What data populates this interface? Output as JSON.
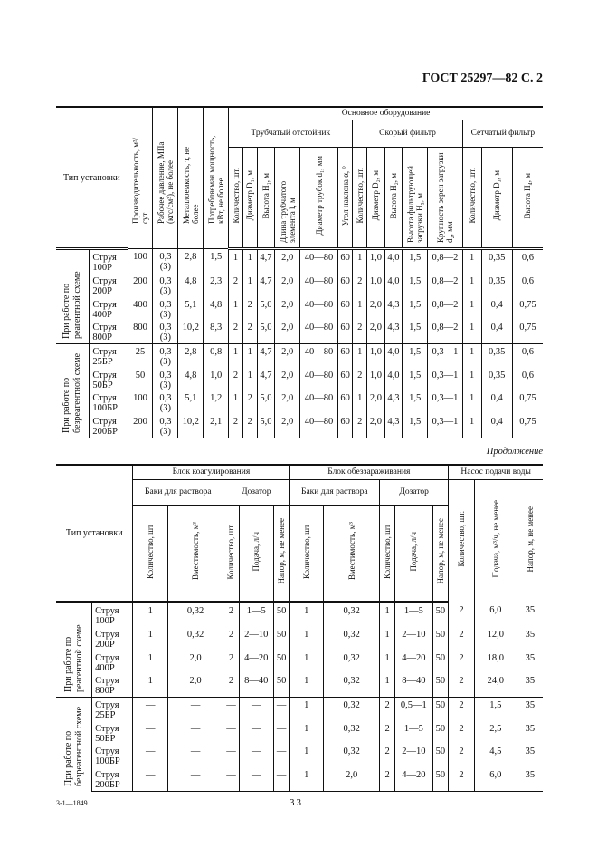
{
  "header": {
    "title": "ГОСТ 25297—82 С. 2"
  },
  "type_header": "Тип установки",
  "table1": {
    "main_headers": [
      "Производительность, м³/сут",
      "Рабочее давление, МПа (кгс/см²), не более",
      "Металлоемкость, т, не более",
      "Потребляемая мощность, кВт, не более"
    ],
    "group_header": "Основное оборудование",
    "subgroups": [
      {
        "label": "Трубчатый отстойник",
        "columns": [
          "Количество, шт.",
          "Диаметр D₁, м",
          "Высота H₁, м",
          "Длина трубчатого элемента l, м",
          "Диаметр трубок d₁, мм",
          "Угол наклона α, °"
        ]
      },
      {
        "label": "Скорый фильтр",
        "columns": [
          "Количество, шт.",
          "Диаметр D₂, м",
          "Высота H₂, м",
          "Высота фильтрующей загрузки H₃, м",
          "Крупность зерен загрузки d₂, мм"
        ]
      },
      {
        "label": "Сетчатый фильтр",
        "columns": [
          "Количество, шт.",
          "Диаметр D₃, м",
          "Высота H₄, м"
        ]
      }
    ],
    "groups": [
      {
        "label": "При работе по реагентной схеме",
        "rows": [
          {
            "type": "Струя\n100Р",
            "values": [
              "100",
              "0,3\n(3)",
              "2,8",
              "1,5",
              "1",
              "1",
              "4,7",
              "2,0",
              "40—80",
              "60",
              "1",
              "1,0",
              "4,0",
              "1,5",
              "0,8—2",
              "1",
              "0,35",
              "0,6"
            ]
          },
          {
            "type": "Струя\n200Р",
            "values": [
              "200",
              "0,3\n(3)",
              "4,8",
              "2,3",
              "2",
              "1",
              "4,7",
              "2,0",
              "40—80",
              "60",
              "2",
              "1,0",
              "4,0",
              "1,5",
              "0,8—2",
              "1",
              "0,35",
              "0,6"
            ]
          },
          {
            "type": "Струя\n400Р",
            "values": [
              "400",
              "0,3\n(3)",
              "5,1",
              "4,8",
              "1",
              "2",
              "5,0",
              "2,0",
              "40—80",
              "60",
              "1",
              "2,0",
              "4,3",
              "1,5",
              "0,8—2",
              "1",
              "0,4",
              "0,75"
            ]
          },
          {
            "type": "Струя\n800Р",
            "values": [
              "800",
              "0,3\n(3)",
              "10,2",
              "8,3",
              "2",
              "2",
              "5,0",
              "2,0",
              "40—80",
              "60",
              "2",
              "2,0",
              "4,3",
              "1,5",
              "0,8—2",
              "1",
              "0,4",
              "0,75"
            ]
          }
        ]
      },
      {
        "label": "При работе по безреагентной схеме",
        "rows": [
          {
            "type": "Струя\n25БР",
            "values": [
              "25",
              "0,3\n(3)",
              "2,8",
              "0,8",
              "1",
              "1",
              "4,7",
              "2,0",
              "40—80",
              "60",
              "1",
              "1,0",
              "4,0",
              "1,5",
              "0,3—1",
              "1",
              "0,35",
              "0,6"
            ]
          },
          {
            "type": "Струя\n50БР",
            "values": [
              "50",
              "0,3\n(3)",
              "4,8",
              "1,0",
              "2",
              "1",
              "4,7",
              "2,0",
              "40—80",
              "60",
              "2",
              "1,0",
              "4,0",
              "1,5",
              "0,3—1",
              "1",
              "0,35",
              "0,6"
            ]
          },
          {
            "type": "Струя\n100БР",
            "values": [
              "100",
              "0,3\n(3)",
              "5,1",
              "1,2",
              "1",
              "2",
              "5,0",
              "2,0",
              "40—80",
              "60",
              "1",
              "2,0",
              "4,3",
              "1,5",
              "0,3—1",
              "1",
              "0,4",
              "0,75"
            ]
          },
          {
            "type": "Струя\n200БР",
            "values": [
              "200",
              "0,3\n(3)",
              "10,2",
              "2,1",
              "2",
              "2",
              "5,0",
              "2,0",
              "40—80",
              "60",
              "2",
              "2,0",
              "4,3",
              "1,5",
              "0,3—1",
              "1",
              "0,4",
              "0,75"
            ]
          }
        ]
      }
    ]
  },
  "continuation": "Продолжение",
  "table2": {
    "blocks": [
      {
        "label": "Блок коагулирования",
        "subs": [
          {
            "label": "Баки для раствора",
            "columns": [
              "Количество, шт",
              "Вместимость, м³"
            ]
          },
          {
            "label": "Дозатор",
            "columns": [
              "Количество, шт.",
              "Подача, л/ч",
              "Напор, м, не менее"
            ]
          }
        ]
      },
      {
        "label": "Блок обеззараживания",
        "subs": [
          {
            "label": "Баки для раствора",
            "columns": [
              "Количество, шт",
              "Вместимость, м³"
            ]
          },
          {
            "label": "Дозатор",
            "columns": [
              "Количество, шт",
              "Подача, л/ч",
              "Напор, м, не менее"
            ]
          }
        ]
      }
    ],
    "pump": {
      "label": "Насос подачи воды",
      "columns": [
        "Количество, шт.",
        "Подача, м³/ч, не менее",
        "Напор, м, не менее"
      ]
    },
    "groups": [
      {
        "label": "При работе по реагентной схеме",
        "rows": [
          {
            "type": "Струя\n100Р",
            "values": [
              "1",
              "0,32",
              "2",
              "1—5",
              "50",
              "1",
              "0,32",
              "1",
              "1—5",
              "50",
              "2",
              "6,0",
              "35"
            ]
          },
          {
            "type": "Струя\n200Р",
            "values": [
              "1",
              "0,32",
              "2",
              "2—10",
              "50",
              "1",
              "0,32",
              "1",
              "2—10",
              "50",
              "2",
              "12,0",
              "35"
            ]
          },
          {
            "type": "Струя\n400Р",
            "values": [
              "1",
              "2,0",
              "2",
              "4—20",
              "50",
              "1",
              "0,32",
              "1",
              "4—20",
              "50",
              "2",
              "18,0",
              "35"
            ]
          },
          {
            "type": "Струя\n800Р",
            "values": [
              "1",
              "2,0",
              "2",
              "8—40",
              "50",
              "1",
              "0,32",
              "1",
              "8—40",
              "50",
              "2",
              "24,0",
              "35"
            ]
          }
        ]
      },
      {
        "label": "При работе по безреагентной схеме",
        "rows": [
          {
            "type": "Струя\n25БР",
            "values": [
              "—",
              "—",
              "—",
              "—",
              "—",
              "1",
              "0,32",
              "2",
              "0,5—1",
              "50",
              "2",
              "1,5",
              "35"
            ]
          },
          {
            "type": "Струя\n50БР",
            "values": [
              "—",
              "—",
              "—",
              "—",
              "—",
              "1",
              "0,32",
              "2",
              "1—5",
              "50",
              "2",
              "2,5",
              "35"
            ]
          },
          {
            "type": "Струя\n100БР",
            "values": [
              "—",
              "—",
              "—",
              "—",
              "—",
              "1",
              "0,32",
              "2",
              "2—10",
              "50",
              "2",
              "4,5",
              "35"
            ]
          },
          {
            "type": "Струя\n200БР",
            "values": [
              "—",
              "—",
              "—",
              "—",
              "—",
              "1",
              "2,0",
              "2",
              "4—20",
              "50",
              "2",
              "6,0",
              "35"
            ]
          }
        ]
      }
    ]
  },
  "footer": {
    "print_code": "3-1—1849",
    "page_number": "33"
  }
}
